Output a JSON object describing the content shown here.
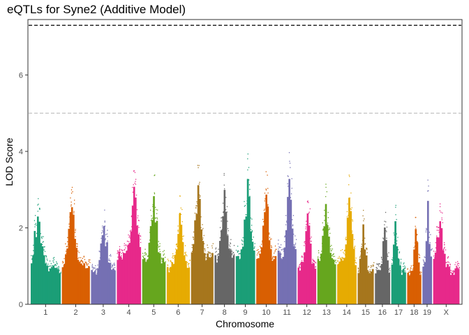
{
  "chart_data": {
    "type": "scatter",
    "title": "eQTLs for Syne2 (Additive Model)",
    "xlabel": "Chromosome",
    "ylabel": "LOD Score",
    "ylim": [
      0,
      7.45
    ],
    "y_ticks": [
      0,
      2,
      4,
      6
    ],
    "grid": false,
    "legend": "none",
    "thresholds": [
      {
        "value": 7.3,
        "style": "dashed",
        "color": "#000000"
      },
      {
        "value": 5.0,
        "style": "dashed",
        "color": "#bbbbbb"
      }
    ],
    "palette": [
      "#1b9e77",
      "#d95f02",
      "#7570b3",
      "#e7298a",
      "#66a61e",
      "#e6ab02",
      "#a6761d",
      "#666666"
    ],
    "chromosomes": [
      {
        "label": "1",
        "relative_length": 195,
        "peak_lod": 2.8
      },
      {
        "label": "2",
        "relative_length": 182,
        "peak_lod": 3.1
      },
      {
        "label": "3",
        "relative_length": 160,
        "peak_lod": 2.5
      },
      {
        "label": "4",
        "relative_length": 157,
        "peak_lod": 3.75
      },
      {
        "label": "5",
        "relative_length": 152,
        "peak_lod": 3.45
      },
      {
        "label": "6",
        "relative_length": 150,
        "peak_lod": 2.9
      },
      {
        "label": "7",
        "relative_length": 145,
        "peak_lod": 3.8
      },
      {
        "label": "8",
        "relative_length": 130,
        "peak_lod": 3.65
      },
      {
        "label": "9",
        "relative_length": 125,
        "peak_lod": 4.0
      },
      {
        "label": "10",
        "relative_length": 131,
        "peak_lod": 3.5
      },
      {
        "label": "11",
        "relative_length": 122,
        "peak_lod": 4.0
      },
      {
        "label": "12",
        "relative_length": 120,
        "peak_lod": 2.9
      },
      {
        "label": "13",
        "relative_length": 121,
        "peak_lod": 3.2
      },
      {
        "label": "14",
        "relative_length": 125,
        "peak_lod": 3.4
      },
      {
        "label": "15",
        "relative_length": 104,
        "peak_lod": 2.55
      },
      {
        "label": "16",
        "relative_length": 98,
        "peak_lod": 2.45
      },
      {
        "label": "17",
        "relative_length": 95,
        "peak_lod": 2.65
      },
      {
        "label": "18",
        "relative_length": 91,
        "peak_lod": 2.4
      },
      {
        "label": "19",
        "relative_length": 61,
        "peak_lod": 3.3
      },
      {
        "label": "X",
        "relative_length": 171,
        "peak_lod": 2.65
      }
    ]
  }
}
